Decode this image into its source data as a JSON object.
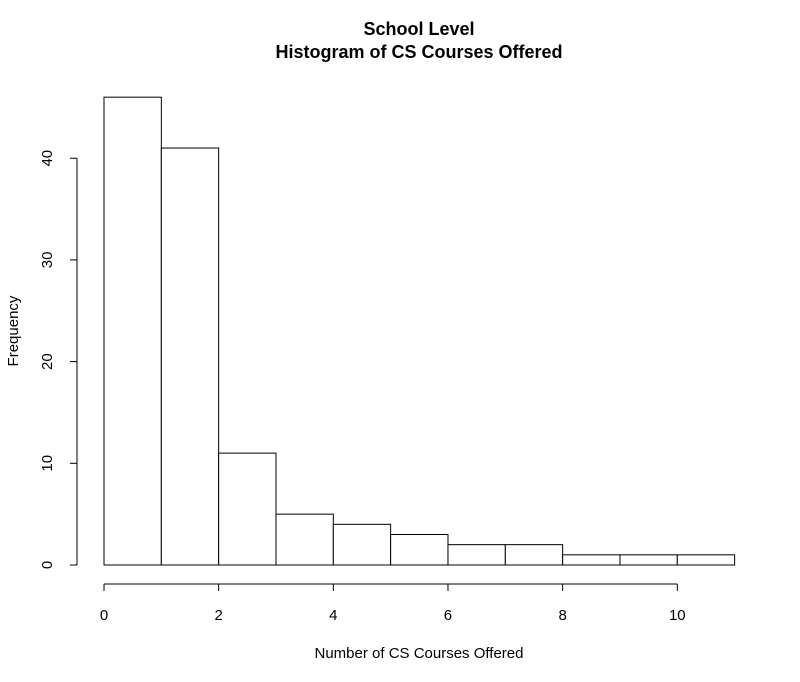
{
  "chart_data": {
    "type": "bar",
    "title_line1": "School Level",
    "title_line2": "Histogram of CS Courses Offered",
    "xlabel": "Number of CS Courses Offered",
    "ylabel": "Frequency",
    "bins": [
      {
        "start": 0,
        "end": 1,
        "value": 46
      },
      {
        "start": 1,
        "end": 2,
        "value": 41
      },
      {
        "start": 2,
        "end": 3,
        "value": 11
      },
      {
        "start": 3,
        "end": 4,
        "value": 5
      },
      {
        "start": 4,
        "end": 5,
        "value": 4
      },
      {
        "start": 5,
        "end": 6,
        "value": 3
      },
      {
        "start": 6,
        "end": 7,
        "value": 2
      },
      {
        "start": 7,
        "end": 8,
        "value": 2
      },
      {
        "start": 8,
        "end": 9,
        "value": 1
      },
      {
        "start": 9,
        "end": 10,
        "value": 1
      },
      {
        "start": 10,
        "end": 11,
        "value": 1
      }
    ],
    "xlim": [
      0,
      11
    ],
    "ylim": [
      0,
      46
    ],
    "x_ticks": [
      0,
      2,
      4,
      6,
      8,
      10
    ],
    "y_ticks": [
      0,
      10,
      20,
      30,
      40
    ],
    "x_tick_labels": [
      "0",
      "2",
      "4",
      "6",
      "8",
      "10"
    ],
    "y_tick_labels": [
      "0",
      "10",
      "20",
      "30",
      "40"
    ],
    "grid": false,
    "bar_fill": "#ffffff",
    "bar_stroke": "#000000"
  }
}
